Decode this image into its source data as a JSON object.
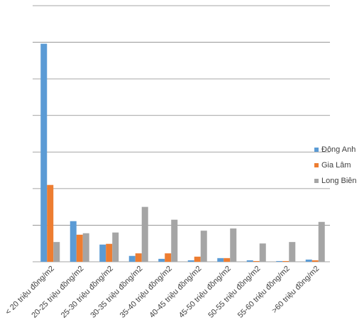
{
  "chart_data": {
    "type": "bar",
    "categories": [
      "< 20 triệu đồng/m2",
      "20-25 triệu đồng/m2",
      "25-30 triệu đồng/m2",
      "30-35 triệu đồng/m2",
      "35-40 triệu đồng/m2",
      "40-45 triệu đồng/m2",
      "45-50 triệu đồng/m2",
      "50-55 triệu đồng/m2",
      "55-60 triệu đồng/m2",
      ">60 triệu đồng/m2"
    ],
    "series": [
      {
        "name": "Đông Anh",
        "color": "#5b9bd5",
        "values": [
          5.96,
          1.11,
          0.47,
          0.16,
          0.08,
          0.04,
          0.1,
          0.04,
          0.02,
          0.06
        ]
      },
      {
        "name": "Gia Lâm",
        "color": "#ed7d31",
        "values": [
          2.1,
          0.74,
          0.49,
          0.23,
          0.23,
          0.14,
          0.1,
          0.02,
          0.02,
          0.04
        ]
      },
      {
        "name": "Long Biên",
        "color": "#a5a5a5",
        "values": [
          0.54,
          0.78,
          0.8,
          1.5,
          1.15,
          0.85,
          0.91,
          0.5,
          0.54,
          1.09
        ]
      }
    ],
    "ylim": [
      0,
      7
    ],
    "yticks": [
      0,
      1,
      2,
      3,
      4,
      5,
      6,
      7
    ],
    "grid": true,
    "legend": "right"
  }
}
